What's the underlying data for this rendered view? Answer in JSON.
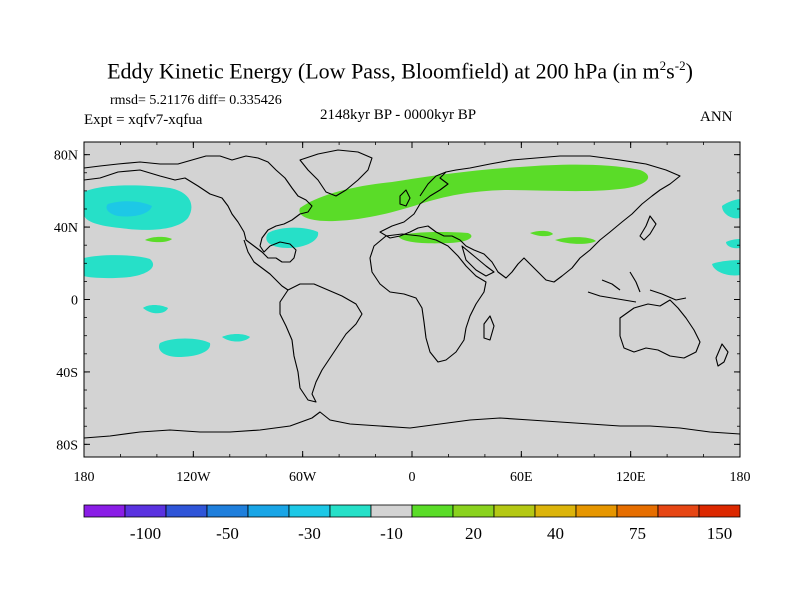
{
  "title": {
    "main": "Eddy Kinetic Energy (Low Pass, Bloomfield) at 200 hPa (in m",
    "sup1": "2",
    "mid": "s",
    "sup2": "-2",
    "close": ")"
  },
  "stats": "rmsd= 5.21176 diff= 0.335426",
  "experiment": "Expt = xqfv7-xqfua",
  "period": "2148kyr BP - 0000kyr BP",
  "season": "ANN",
  "map": {
    "lat_ticks": [
      {
        "value": 80,
        "label": "80N"
      },
      {
        "value": 40,
        "label": "40N"
      },
      {
        "value": 0,
        "label": "0"
      },
      {
        "value": -40,
        "label": "40S"
      },
      {
        "value": -80,
        "label": "80S"
      }
    ],
    "lon_ticks": [
      {
        "value": -180,
        "label": "180"
      },
      {
        "value": -120,
        "label": "120W"
      },
      {
        "value": -60,
        "label": "60W"
      },
      {
        "value": 0,
        "label": "0"
      },
      {
        "value": 60,
        "label": "60E"
      },
      {
        "value": 120,
        "label": "120E"
      },
      {
        "value": 180,
        "label": "180"
      }
    ],
    "background_color": "#d3d3d3"
  },
  "colorbar": {
    "colors": [
      "#8a1de6",
      "#5a32e0",
      "#2f55d8",
      "#1f7fdc",
      "#19a5e6",
      "#1dc8e6",
      "#26e0c8",
      "#d3d3d3",
      "#5adc28",
      "#8ad21e",
      "#b4c814",
      "#dcb40a",
      "#e69600",
      "#e66e00",
      "#e64614",
      "#dc2800"
    ],
    "labels": [
      "-100",
      "-50",
      "-30",
      "-10",
      "20",
      "40",
      "75",
      "150"
    ],
    "label_positions": [
      2,
      4,
      6,
      8,
      10,
      12,
      14,
      16
    ]
  }
}
